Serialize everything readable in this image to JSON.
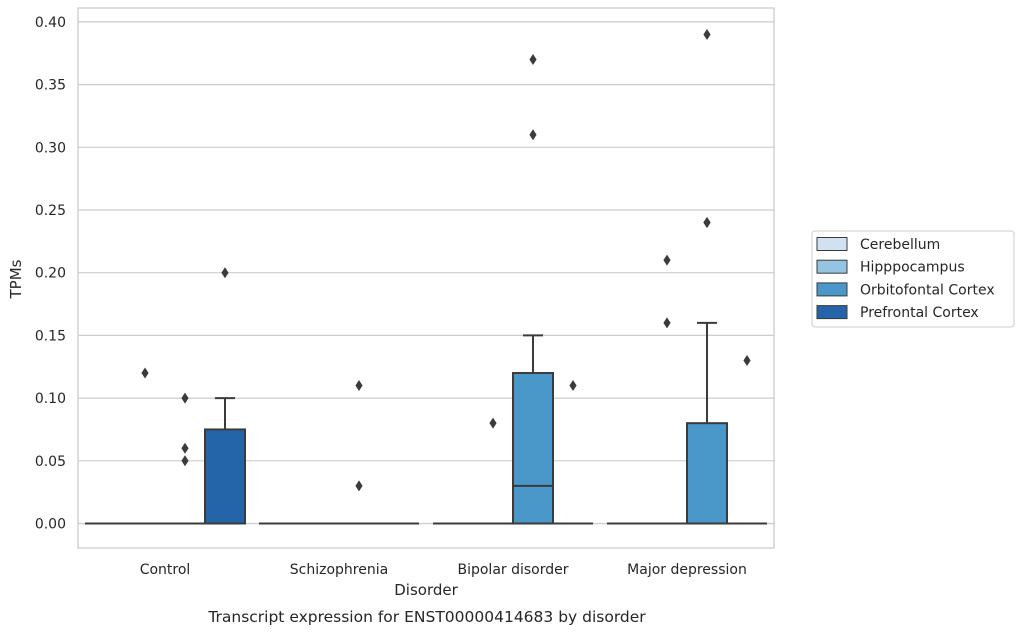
{
  "chart_data": {
    "type": "box",
    "caption": "Transcript expression for ENST00000414683 by disorder",
    "xlabel": "Disorder",
    "ylabel": "TPMs",
    "ylim": [
      -0.02,
      0.41
    ],
    "yticks": [
      0.0,
      0.05,
      0.1,
      0.15,
      0.2,
      0.25,
      0.3,
      0.35,
      0.4
    ],
    "ytick_labels": [
      "0.00",
      "0.05",
      "0.10",
      "0.15",
      "0.20",
      "0.25",
      "0.30",
      "0.35",
      "0.40"
    ],
    "grid": "horizontal",
    "legend_position": "right",
    "categories": [
      "Control",
      "Schizophrenia",
      "Bipolar disorder",
      "Major depression"
    ],
    "series": [
      {
        "name": "Cerebellum",
        "color": "#d0e1f2",
        "boxes": [
          {
            "q1": 0,
            "median": 0,
            "q3": 0,
            "whisker_low": 0,
            "whisker_high": 0,
            "outliers": []
          },
          {
            "q1": 0,
            "median": 0,
            "q3": 0,
            "whisker_low": 0,
            "whisker_high": 0,
            "outliers": []
          },
          {
            "q1": 0,
            "median": 0,
            "q3": 0,
            "whisker_low": 0,
            "whisker_high": 0,
            "outliers": []
          },
          {
            "q1": 0,
            "median": 0,
            "q3": 0,
            "whisker_low": 0,
            "whisker_high": 0,
            "outliers": []
          }
        ]
      },
      {
        "name": "Hipppocampus",
        "color": "#94c4df",
        "boxes": [
          {
            "q1": 0,
            "median": 0,
            "q3": 0,
            "whisker_low": 0,
            "whisker_high": 0,
            "outliers": [
              0.12
            ]
          },
          {
            "q1": 0,
            "median": 0,
            "q3": 0,
            "whisker_low": 0,
            "whisker_high": 0,
            "outliers": []
          },
          {
            "q1": 0,
            "median": 0,
            "q3": 0,
            "whisker_low": 0,
            "whisker_high": 0,
            "outliers": [
              0.08
            ]
          },
          {
            "q1": 0,
            "median": 0,
            "q3": 0,
            "whisker_low": 0,
            "whisker_high": 0,
            "outliers": [
              0.21,
              0.16
            ]
          }
        ]
      },
      {
        "name": "Orbitofontal Cortex",
        "color": "#4a98c9",
        "boxes": [
          {
            "q1": 0,
            "median": 0,
            "q3": 0,
            "whisker_low": 0,
            "whisker_high": 0,
            "outliers": [
              0.1,
              0.06,
              0.05
            ]
          },
          {
            "q1": 0,
            "median": 0,
            "q3": 0,
            "whisker_low": 0,
            "whisker_high": 0,
            "outliers": [
              0.11,
              0.03
            ]
          },
          {
            "q1": 0,
            "median": 0.03,
            "q3": 0.12,
            "whisker_low": 0,
            "whisker_high": 0.15,
            "outliers": [
              0.37,
              0.31
            ]
          },
          {
            "q1": 0,
            "median": 0,
            "q3": 0.08,
            "whisker_low": 0,
            "whisker_high": 0.16,
            "outliers": [
              0.39,
              0.24,
              0.24
            ]
          }
        ]
      },
      {
        "name": "Prefrontal Cortex",
        "color": "#2464a8",
        "boxes": [
          {
            "q1": 0,
            "median": 0,
            "q3": 0.075,
            "whisker_low": 0,
            "whisker_high": 0.1,
            "outliers": [
              0.2
            ]
          },
          {
            "q1": 0,
            "median": 0,
            "q3": 0,
            "whisker_low": 0,
            "whisker_high": 0,
            "outliers": []
          },
          {
            "q1": 0,
            "median": 0,
            "q3": 0,
            "whisker_low": 0,
            "whisker_high": 0,
            "outliers": [
              0.11
            ]
          },
          {
            "q1": 0,
            "median": 0,
            "q3": 0,
            "whisker_low": 0,
            "whisker_high": 0,
            "outliers": [
              0.13
            ]
          }
        ]
      }
    ]
  }
}
